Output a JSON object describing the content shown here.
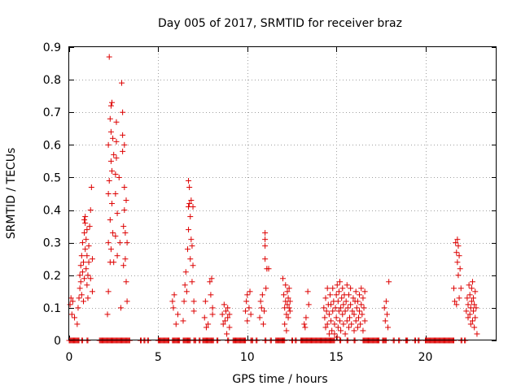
{
  "chart_data": {
    "type": "scatter",
    "title": "Day 005 of 2017, SRMTID for receiver braz",
    "xlabel": "GPS time / hours",
    "ylabel": "SRMTID / TECUs",
    "xlim": [
      0,
      24
    ],
    "ylim": [
      0,
      0.9
    ],
    "xticks": [
      0,
      5,
      10,
      15,
      20
    ],
    "yticks": [
      0,
      0.1,
      0.2,
      0.3,
      0.4,
      0.5,
      0.6,
      0.7,
      0.8,
      0.9
    ],
    "grid": true,
    "marker": "+",
    "marker_color": "#dd0000",
    "series": [
      {
        "name": "SRMTID",
        "points": [
          [
            0.05,
            0.11
          ],
          [
            0.1,
            0.13
          ],
          [
            0.15,
            0.08
          ],
          [
            0.2,
            0.12
          ],
          [
            0.3,
            0.07
          ],
          [
            0.45,
            0.05
          ],
          [
            0.5,
            0.1
          ],
          [
            0.55,
            0.13
          ],
          [
            0.6,
            0.16
          ],
          [
            0.6,
            0.2
          ],
          [
            0.65,
            0.18
          ],
          [
            0.65,
            0.23
          ],
          [
            0.7,
            0.14
          ],
          [
            0.7,
            0.26
          ],
          [
            0.75,
            0.21
          ],
          [
            0.75,
            0.3
          ],
          [
            0.8,
            0.12
          ],
          [
            0.8,
            0.24
          ],
          [
            0.85,
            0.19
          ],
          [
            0.85,
            0.33
          ],
          [
            0.85,
            0.37
          ],
          [
            0.9,
            0.28
          ],
          [
            0.9,
            0.36
          ],
          [
            0.9,
            0.38
          ],
          [
            0.95,
            0.22
          ],
          [
            0.95,
            0.31
          ],
          [
            1.0,
            0.17
          ],
          [
            1.0,
            0.26
          ],
          [
            1.0,
            0.34
          ],
          [
            1.05,
            0.2
          ],
          [
            1.05,
            0.13
          ],
          [
            1.1,
            0.29
          ],
          [
            1.1,
            0.24
          ],
          [
            1.15,
            0.35
          ],
          [
            1.2,
            0.4
          ],
          [
            1.2,
            0.19
          ],
          [
            1.25,
            0.47
          ],
          [
            1.3,
            0.25
          ],
          [
            1.3,
            0.15
          ],
          [
            2.15,
            0.08
          ],
          [
            2.2,
            0.15
          ],
          [
            2.2,
            0.3
          ],
          [
            2.2,
            0.45
          ],
          [
            2.2,
            0.6
          ],
          [
            2.25,
            0.49
          ],
          [
            2.25,
            0.87
          ],
          [
            2.3,
            0.68
          ],
          [
            2.3,
            0.37
          ],
          [
            2.3,
            0.24
          ],
          [
            2.35,
            0.72
          ],
          [
            2.35,
            0.64
          ],
          [
            2.35,
            0.55
          ],
          [
            2.35,
            0.28
          ],
          [
            2.4,
            0.73
          ],
          [
            2.4,
            0.52
          ],
          [
            2.4,
            0.42
          ],
          [
            2.45,
            0.62
          ],
          [
            2.45,
            0.33
          ],
          [
            2.5,
            0.57
          ],
          [
            2.5,
            0.24
          ],
          [
            2.6,
            0.51
          ],
          [
            2.6,
            0.45
          ],
          [
            2.6,
            0.32
          ],
          [
            2.65,
            0.67
          ],
          [
            2.65,
            0.61
          ],
          [
            2.65,
            0.56
          ],
          [
            2.7,
            0.39
          ],
          [
            2.7,
            0.26
          ],
          [
            2.8,
            0.5
          ],
          [
            2.85,
            0.3
          ],
          [
            2.9,
            0.1
          ],
          [
            2.95,
            0.79
          ],
          [
            3.0,
            0.7
          ],
          [
            3.0,
            0.63
          ],
          [
            3.0,
            0.58
          ],
          [
            3.05,
            0.35
          ],
          [
            3.05,
            0.23
          ],
          [
            3.1,
            0.6
          ],
          [
            3.1,
            0.47
          ],
          [
            3.1,
            0.4
          ],
          [
            3.15,
            0.33
          ],
          [
            3.15,
            0.25
          ],
          [
            3.2,
            0.43
          ],
          [
            3.2,
            0.18
          ],
          [
            3.25,
            0.3
          ],
          [
            3.25,
            0.12
          ],
          [
            5.8,
            0.12
          ],
          [
            5.85,
            0.1
          ],
          [
            5.9,
            0.14
          ],
          [
            6.0,
            0.05
          ],
          [
            6.1,
            0.08
          ],
          [
            6.4,
            0.06
          ],
          [
            6.45,
            0.12
          ],
          [
            6.5,
            0.17
          ],
          [
            6.55,
            0.21
          ],
          [
            6.6,
            0.15
          ],
          [
            6.65,
            0.28
          ],
          [
            6.7,
            0.49
          ],
          [
            6.7,
            0.41
          ],
          [
            6.7,
            0.34
          ],
          [
            6.75,
            0.47
          ],
          [
            6.75,
            0.42
          ],
          [
            6.8,
            0.38
          ],
          [
            6.8,
            0.25
          ],
          [
            6.85,
            0.43
          ],
          [
            6.85,
            0.31
          ],
          [
            6.9,
            0.29
          ],
          [
            6.9,
            0.18
          ],
          [
            6.95,
            0.41
          ],
          [
            6.95,
            0.23
          ],
          [
            7.0,
            0.12
          ],
          [
            7.0,
            0.09
          ],
          [
            7.6,
            0.07
          ],
          [
            7.65,
            0.12
          ],
          [
            7.7,
            0.04
          ],
          [
            7.8,
            0.05
          ],
          [
            7.9,
            0.18
          ],
          [
            7.95,
            0.14
          ],
          [
            8.0,
            0.19
          ],
          [
            8.05,
            0.1
          ],
          [
            8.05,
            0.08
          ],
          [
            8.6,
            0.08
          ],
          [
            8.65,
            0.05
          ],
          [
            8.7,
            0.11
          ],
          [
            8.75,
            0.06
          ],
          [
            8.8,
            0.09
          ],
          [
            8.85,
            0.02
          ],
          [
            8.9,
            0.1
          ],
          [
            8.9,
            0.07
          ],
          [
            9.0,
            0.08
          ],
          [
            9.0,
            0.04
          ],
          [
            9.9,
            0.09
          ],
          [
            9.95,
            0.12
          ],
          [
            10.0,
            0.14
          ],
          [
            10.0,
            0.06
          ],
          [
            10.1,
            0.1
          ],
          [
            10.15,
            0.15
          ],
          [
            10.2,
            0.08
          ],
          [
            10.7,
            0.07
          ],
          [
            10.75,
            0.12
          ],
          [
            10.8,
            0.1
          ],
          [
            10.85,
            0.14
          ],
          [
            10.9,
            0.05
          ],
          [
            10.95,
            0.09
          ],
          [
            11.0,
            0.33
          ],
          [
            11.0,
            0.29
          ],
          [
            11.0,
            0.25
          ],
          [
            11.0,
            0.31
          ],
          [
            11.05,
            0.16
          ],
          [
            11.1,
            0.22
          ],
          [
            11.2,
            0.22
          ],
          [
            12.0,
            0.19
          ],
          [
            12.05,
            0.14
          ],
          [
            12.1,
            0.1
          ],
          [
            12.1,
            0.05
          ],
          [
            12.15,
            0.17
          ],
          [
            12.15,
            0.12
          ],
          [
            12.2,
            0.08
          ],
          [
            12.2,
            0.03
          ],
          [
            12.25,
            0.15
          ],
          [
            12.25,
            0.11
          ],
          [
            12.3,
            0.07
          ],
          [
            12.3,
            0.13
          ],
          [
            12.35,
            0.1
          ],
          [
            12.35,
            0.16
          ],
          [
            12.4,
            0.12
          ],
          [
            12.4,
            0.09
          ],
          [
            13.2,
            0.05
          ],
          [
            13.25,
            0.04
          ],
          [
            13.3,
            0.07
          ],
          [
            13.4,
            0.15
          ],
          [
            13.45,
            0.11
          ],
          [
            14.3,
            0.1
          ],
          [
            14.35,
            0.07
          ],
          [
            14.4,
            0.04
          ],
          [
            14.4,
            0.13
          ],
          [
            14.45,
            0.09
          ],
          [
            14.5,
            0.05
          ],
          [
            14.5,
            0.16
          ],
          [
            14.55,
            0.11
          ],
          [
            14.6,
            0.02
          ],
          [
            14.6,
            0.08
          ],
          [
            14.65,
            0.14
          ],
          [
            14.7,
            0.06
          ],
          [
            14.7,
            0.11
          ],
          [
            14.75,
            0.03
          ],
          [
            14.8,
            0.09
          ],
          [
            14.8,
            0.16
          ],
          [
            14.85,
            0.12
          ],
          [
            14.9,
            0.05
          ],
          [
            14.9,
            0.02
          ],
          [
            14.95,
            0.1
          ],
          [
            15.0,
            0.14
          ],
          [
            15.0,
            0.07
          ],
          [
            15.05,
            0.17
          ],
          [
            15.05,
            0.01
          ],
          [
            15.1,
            0.12
          ],
          [
            15.1,
            0.04
          ],
          [
            15.15,
            0.09
          ],
          [
            15.15,
            0.15
          ],
          [
            15.2,
            0.06
          ],
          [
            15.2,
            0.18
          ],
          [
            15.25,
            0.1
          ],
          [
            15.25,
            0.03
          ],
          [
            15.3,
            0.13
          ],
          [
            15.35,
            0.08
          ],
          [
            15.35,
            0.16
          ],
          [
            15.4,
            0.05
          ],
          [
            15.4,
            0.11
          ],
          [
            15.45,
            0.14
          ],
          [
            15.5,
            0.02
          ],
          [
            15.5,
            0.09
          ],
          [
            15.55,
            0.12
          ],
          [
            15.6,
            0.06
          ],
          [
            15.6,
            0.17
          ],
          [
            15.65,
            0.1
          ],
          [
            15.7,
            0.04
          ],
          [
            15.7,
            0.14
          ],
          [
            15.75,
            0.07
          ],
          [
            15.8,
            0.11
          ],
          [
            15.8,
            0.16
          ],
          [
            15.85,
            0.05
          ],
          [
            15.9,
            0.09
          ],
          [
            15.95,
            0.13
          ],
          [
            16.0,
            0.03
          ],
          [
            16.0,
            0.08
          ],
          [
            16.05,
            0.12
          ],
          [
            16.1,
            0.06
          ],
          [
            16.1,
            0.15
          ],
          [
            16.15,
            0.1
          ],
          [
            16.2,
            0.04
          ],
          [
            16.2,
            0.12
          ],
          [
            16.25,
            0.07
          ],
          [
            16.3,
            0.14
          ],
          [
            16.3,
            0.09
          ],
          [
            16.35,
            0.05
          ],
          [
            16.4,
            0.11
          ],
          [
            16.4,
            0.16
          ],
          [
            16.45,
            0.08
          ],
          [
            16.5,
            0.13
          ],
          [
            16.5,
            0.03
          ],
          [
            16.55,
            0.1
          ],
          [
            16.6,
            0.06
          ],
          [
            16.6,
            0.15
          ],
          [
            17.7,
            0.1
          ],
          [
            17.75,
            0.06
          ],
          [
            17.8,
            0.12
          ],
          [
            17.85,
            0.08
          ],
          [
            17.9,
            0.04
          ],
          [
            17.95,
            0.18
          ],
          [
            21.6,
            0.16
          ],
          [
            21.65,
            0.12
          ],
          [
            21.7,
            0.3
          ],
          [
            21.75,
            0.27
          ],
          [
            21.75,
            0.11
          ],
          [
            21.8,
            0.31
          ],
          [
            21.8,
            0.24
          ],
          [
            21.85,
            0.29
          ],
          [
            21.85,
            0.2
          ],
          [
            21.9,
            0.26
          ],
          [
            21.9,
            0.13
          ],
          [
            21.95,
            0.22
          ],
          [
            22.0,
            0.16
          ],
          [
            22.3,
            0.09
          ],
          [
            22.35,
            0.13
          ],
          [
            22.4,
            0.07
          ],
          [
            22.4,
            0.11
          ],
          [
            22.45,
            0.17
          ],
          [
            22.5,
            0.08
          ],
          [
            22.5,
            0.14
          ],
          [
            22.55,
            0.05
          ],
          [
            22.55,
            0.1
          ],
          [
            22.6,
            0.16
          ],
          [
            22.6,
            0.12
          ],
          [
            22.65,
            0.06
          ],
          [
            22.65,
            0.18
          ],
          [
            22.7,
            0.09
          ],
          [
            22.7,
            0.13
          ],
          [
            22.75,
            0.04
          ],
          [
            22.75,
            0.11
          ],
          [
            22.8,
            0.15
          ],
          [
            22.8,
            0.07
          ],
          [
            22.85,
            0.1
          ],
          [
            22.9,
            0.02
          ]
        ],
        "zero_runs": [
          [
            0.0,
            0.55
          ],
          [
            0.7,
            0.75
          ],
          [
            1.0,
            1.05
          ],
          [
            1.7,
            2.15
          ],
          [
            2.2,
            3.4
          ],
          [
            4.0,
            4.05
          ],
          [
            4.2,
            4.25
          ],
          [
            4.4,
            4.45
          ],
          [
            5.0,
            5.6
          ],
          [
            5.8,
            6.2
          ],
          [
            6.4,
            6.8
          ],
          [
            7.0,
            7.1
          ],
          [
            7.3,
            7.35
          ],
          [
            7.5,
            8.1
          ],
          [
            8.3,
            8.35
          ],
          [
            8.9,
            8.95
          ],
          [
            9.2,
            9.9
          ],
          [
            10.2,
            10.3
          ],
          [
            10.5,
            10.55
          ],
          [
            11.0,
            11.05
          ],
          [
            11.3,
            11.35
          ],
          [
            11.6,
            12.1
          ],
          [
            12.5,
            12.55
          ],
          [
            12.7,
            12.75
          ],
          [
            13.0,
            14.9
          ],
          [
            15.2,
            15.25
          ],
          [
            15.6,
            15.65
          ],
          [
            16.0,
            16.05
          ],
          [
            16.5,
            17.4
          ],
          [
            17.6,
            17.8
          ],
          [
            18.2,
            18.25
          ],
          [
            18.5,
            18.55
          ],
          [
            18.9,
            19.0
          ],
          [
            19.4,
            19.45
          ],
          [
            19.6,
            19.65
          ],
          [
            20.0,
            21.6
          ],
          [
            22.0,
            22.05
          ],
          [
            22.2,
            22.25
          ]
        ]
      }
    ]
  }
}
